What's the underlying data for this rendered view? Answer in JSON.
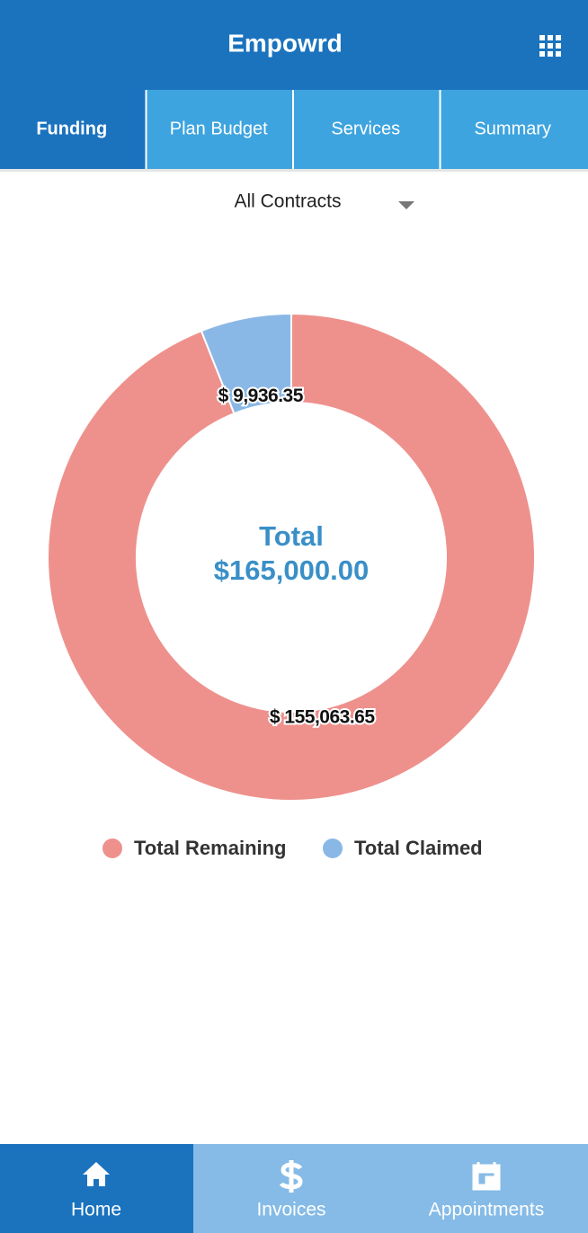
{
  "header": {
    "title": "Empowrd"
  },
  "tabs": [
    "Funding",
    "Plan Budget",
    "Services",
    "Summary"
  ],
  "dropdown": {
    "label": "All Contracts"
  },
  "chart_data": {
    "type": "donut",
    "center_text": [
      "Total",
      "$165,000.00"
    ],
    "categories": [
      "Total Remaining",
      "Total Claimed"
    ],
    "values": [
      155063.65,
      9936.35
    ],
    "value_labels": [
      "$ 155,063.65",
      "$ 9,936.35"
    ],
    "colors": [
      "#ee918d",
      "#8ab8e6"
    ]
  },
  "bottom_nav": [
    "Home",
    "Invoices",
    "Appointments"
  ]
}
